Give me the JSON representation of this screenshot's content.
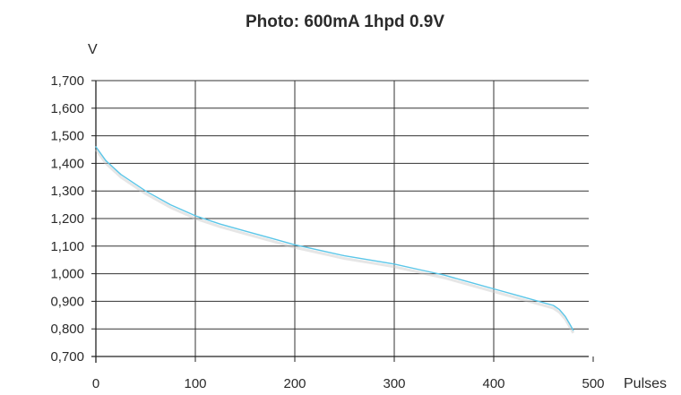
{
  "chart_data": {
    "type": "line",
    "title": "Photo: 600mA 1hpd 0.9V",
    "ylabel": "V",
    "xlabel": "Pulses",
    "xlim": [
      0,
      500
    ],
    "ylim": [
      0.7,
      1.7
    ],
    "xticks": [
      0,
      100,
      200,
      300,
      400,
      500
    ],
    "xtick_labels": [
      "0",
      "100",
      "200",
      "300",
      "400",
      "500"
    ],
    "yticks": [
      0.7,
      0.8,
      0.9,
      1.0,
      1.1,
      1.2,
      1.3,
      1.4,
      1.5,
      1.6,
      1.7
    ],
    "ytick_labels": [
      "0,700",
      "0,800",
      "0,900",
      "1,000",
      "1,100",
      "1,200",
      "1,300",
      "1,400",
      "1,500",
      "1,600",
      "1,700"
    ],
    "grid": true,
    "series": [
      {
        "color": "#5bc6e8",
        "x": [
          0,
          10,
          25,
          50,
          75,
          100,
          125,
          150,
          175,
          200,
          225,
          250,
          275,
          300,
          325,
          350,
          375,
          400,
          425,
          450,
          460,
          466,
          472,
          476,
          480
        ],
        "y": [
          1.46,
          1.41,
          1.36,
          1.3,
          1.25,
          1.21,
          1.18,
          1.155,
          1.13,
          1.105,
          1.085,
          1.065,
          1.05,
          1.035,
          1.015,
          0.995,
          0.97,
          0.945,
          0.92,
          0.895,
          0.885,
          0.87,
          0.845,
          0.82,
          0.795
        ]
      }
    ]
  }
}
